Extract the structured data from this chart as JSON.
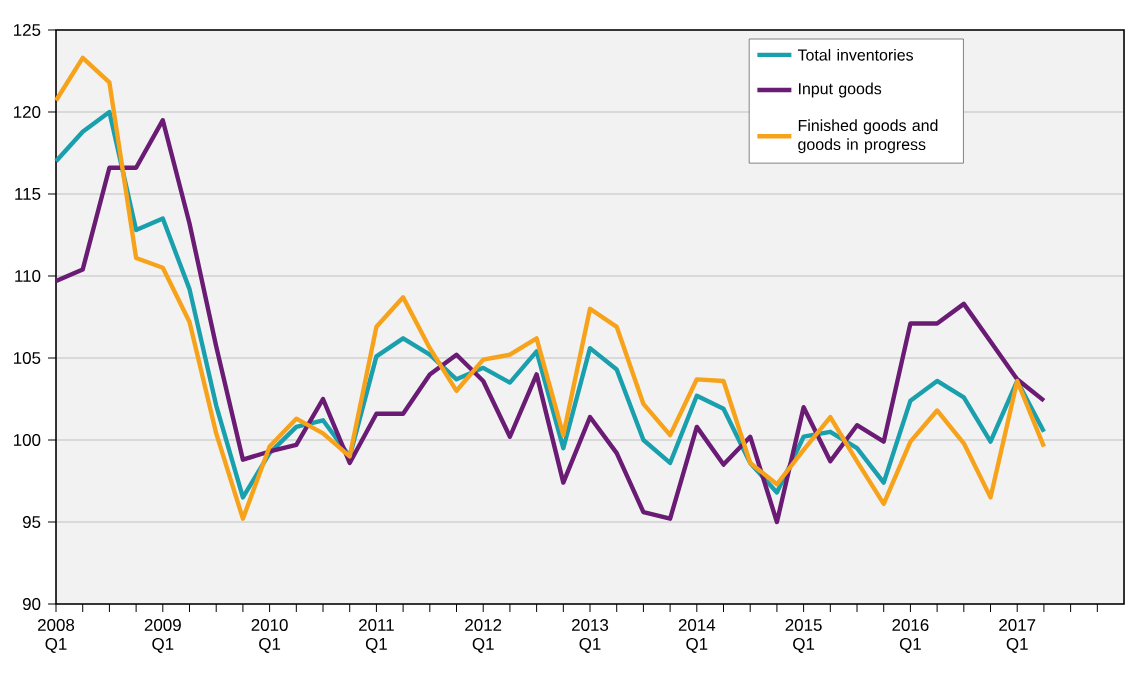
{
  "chart_data": {
    "type": "line",
    "categories": [
      "2008 Q1",
      null,
      null,
      null,
      "2009 Q1",
      null,
      null,
      null,
      "2010 Q1",
      null,
      null,
      null,
      "2011 Q1",
      null,
      null,
      null,
      "2012 Q1",
      null,
      null,
      null,
      "2013 Q1",
      null,
      null,
      null,
      "2014 Q1",
      null,
      null,
      null,
      "2015 Q1",
      null,
      null,
      null,
      "2016 Q1",
      null,
      null,
      null,
      "2017 Q1",
      null,
      null,
      null
    ],
    "series": [
      {
        "name": "Total inventories",
        "color": "#1a9fad",
        "values": [
          117.0,
          118.8,
          120.0,
          112.8,
          113.5,
          109.2,
          102.1,
          96.5,
          99.2,
          100.8,
          101.2,
          99.0,
          105.1,
          106.2,
          105.2,
          103.7,
          104.4,
          103.5,
          105.4,
          99.5,
          105.6,
          104.3,
          100.0,
          98.6,
          102.7,
          101.9,
          98.6,
          96.8,
          100.2,
          100.5,
          99.5,
          97.4,
          102.4,
          103.6,
          102.6,
          99.9,
          103.6,
          100.5,
          null,
          null
        ]
      },
      {
        "name": "Input goods",
        "color": "#6a1b74",
        "values": [
          109.7,
          110.4,
          116.6,
          116.6,
          119.5,
          113.2,
          105.7,
          98.8,
          99.3,
          99.7,
          102.5,
          98.6,
          101.6,
          101.6,
          104.0,
          105.2,
          103.6,
          100.2,
          104.0,
          97.4,
          101.4,
          99.2,
          95.6,
          95.2,
          100.8,
          98.5,
          100.2,
          95.0,
          102.0,
          98.7,
          100.9,
          99.9,
          107.1,
          107.1,
          108.3,
          106.0,
          103.7,
          102.4,
          null,
          null
        ]
      },
      {
        "name": "Finished goods and goods in progress",
        "color": "#f7a21b",
        "values": [
          120.7,
          123.3,
          121.8,
          111.1,
          110.5,
          107.2,
          100.4,
          95.2,
          99.6,
          101.3,
          100.4,
          99.0,
          106.9,
          108.7,
          105.6,
          103.0,
          104.9,
          105.2,
          106.2,
          100.3,
          108.0,
          106.9,
          102.2,
          100.3,
          103.7,
          103.6,
          98.6,
          97.3,
          99.4,
          101.4,
          98.7,
          96.1,
          99.9,
          101.8,
          99.8,
          96.5,
          103.6,
          99.6,
          null,
          null
        ]
      }
    ],
    "ylim": [
      90,
      125
    ],
    "yticks": [
      90,
      95,
      100,
      105,
      110,
      115,
      120,
      125
    ],
    "grid": "y",
    "legend": "top right",
    "marker": "none",
    "line_style": "solid"
  }
}
